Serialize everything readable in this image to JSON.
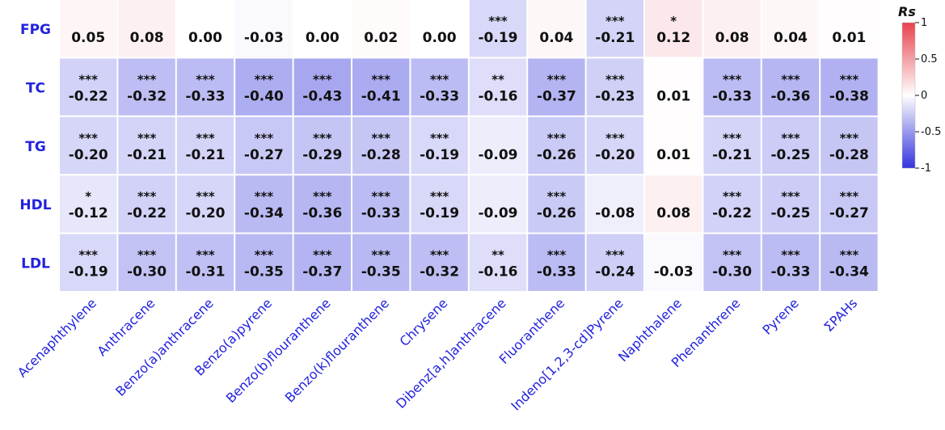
{
  "chart_data": {
    "type": "heatmap",
    "rows": [
      "FPG",
      "TC",
      "TG",
      "HDL",
      "LDL"
    ],
    "columns": [
      "Acenaphthylene",
      "Anthracene",
      "Benzo(a)anthracene",
      "Benzo(a)pyrene",
      "Benzo(b)flouranthene",
      "Benzo(k)flouranthene",
      "Chrysene",
      "Dibenz[a,h]anthracene",
      "Fluoranthene",
      "Indeno[1,2,3-cd]Pyrene",
      "Naphthalene",
      "Phenanthrene",
      "Pyrene",
      "ΣPAHs"
    ],
    "values": [
      [
        "0.05",
        "0.08",
        "0.00",
        "-0.03",
        "0.00",
        "0.02",
        "0.00",
        "-0.19",
        "0.04",
        "-0.21",
        "0.12",
        "0.08",
        "0.04",
        "0.01"
      ],
      [
        "-0.22",
        "-0.32",
        "-0.33",
        "-0.40",
        "-0.43",
        "-0.41",
        "-0.33",
        "-0.16",
        "-0.37",
        "-0.23",
        "0.01",
        "-0.33",
        "-0.36",
        "-0.38"
      ],
      [
        "-0.20",
        "-0.21",
        "-0.21",
        "-0.27",
        "-0.29",
        "-0.28",
        "-0.19",
        "-0.09",
        "-0.26",
        "-0.20",
        "0.01",
        "-0.21",
        "-0.25",
        "-0.28"
      ],
      [
        "-0.12",
        "-0.22",
        "-0.20",
        "-0.34",
        "-0.36",
        "-0.33",
        "-0.19",
        "-0.09",
        "-0.26",
        "-0.08",
        "0.08",
        "-0.22",
        "-0.25",
        "-0.27"
      ],
      [
        "-0.19",
        "-0.30",
        "-0.31",
        "-0.35",
        "-0.37",
        "-0.35",
        "-0.32",
        "-0.16",
        "-0.33",
        "-0.24",
        "-0.03",
        "-0.30",
        "-0.33",
        "-0.34"
      ]
    ],
    "significance": [
      [
        "",
        "",
        "",
        "",
        "",
        "",
        "",
        "***",
        "",
        "***",
        "*",
        "",
        "",
        ""
      ],
      [
        "***",
        "***",
        "***",
        "***",
        "***",
        "***",
        "***",
        "**",
        "***",
        "***",
        "",
        "***",
        "***",
        "***"
      ],
      [
        "***",
        "***",
        "***",
        "***",
        "***",
        "***",
        "***",
        "",
        "***",
        "***",
        "",
        "***",
        "***",
        "***"
      ],
      [
        "*",
        "***",
        "***",
        "***",
        "***",
        "***",
        "***",
        "",
        "***",
        "",
        "",
        "***",
        "***",
        "***"
      ],
      [
        "***",
        "***",
        "***",
        "***",
        "***",
        "***",
        "***",
        "**",
        "***",
        "***",
        "",
        "***",
        "***",
        "***"
      ]
    ],
    "legend": {
      "title": "Rs",
      "ticks": [
        "1",
        "0.5",
        "0",
        "-0.5",
        "-1"
      ],
      "range": [
        -1,
        1
      ],
      "colors": {
        "negative": "#3333dd",
        "zero": "#ffffff",
        "positive": "#e8424d"
      },
      "placement": "right"
    },
    "label_color": "#2222dd"
  }
}
